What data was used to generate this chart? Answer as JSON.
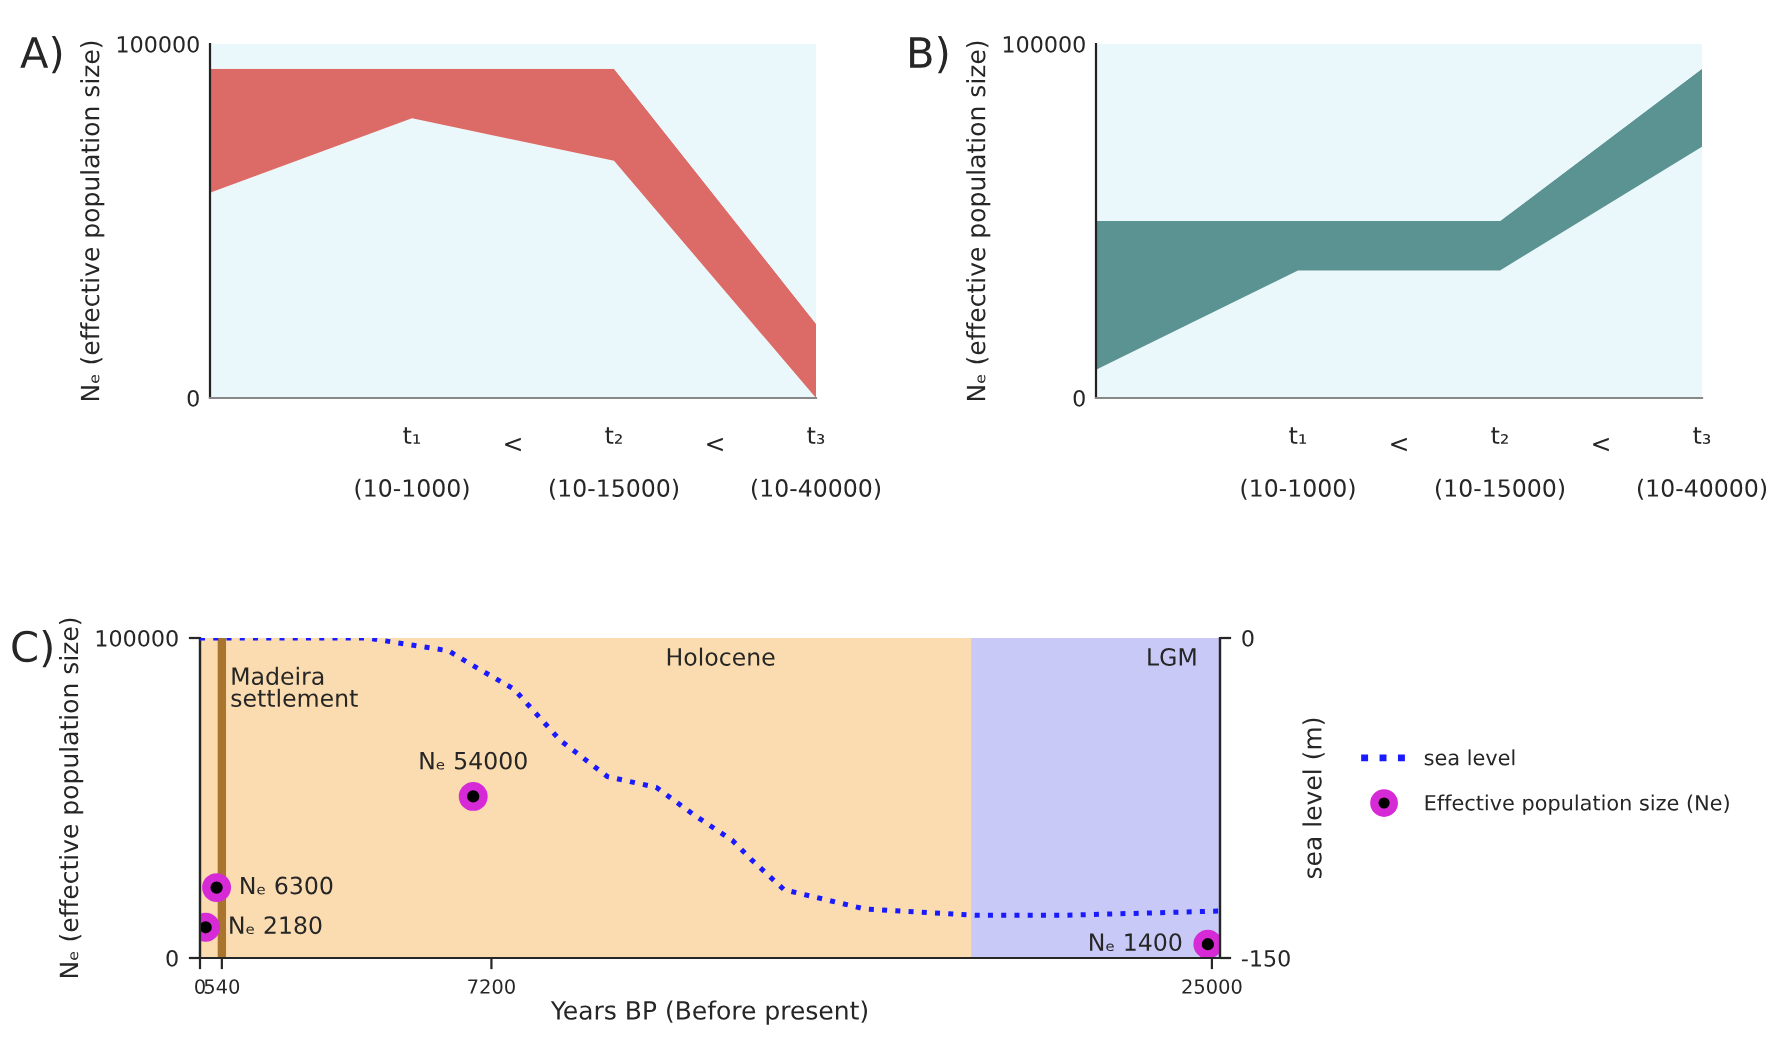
{
  "chart_data": [
    {
      "type": "area",
      "title": "A)",
      "ylabel": "Nₑ (effective population size)",
      "categories": [
        null,
        "t₁\n\n(10-1000)",
        "t₂\n\n(10-15000)",
        "t₃\n\n(10-40000)"
      ],
      "stacked": true,
      "series": [
        {
          "color": "#eaf8fc",
          "values": [
            58000,
            79000,
            67000,
            0
          ]
        },
        {
          "color": "#dc6b67",
          "values": [
            35000,
            14000,
            26000,
            21000
          ]
        },
        {
          "color": "#eaf8fc",
          "values": [
            7000,
            7000,
            7000,
            79000
          ]
        }
      ],
      "annotations": [
        "<",
        "<"
      ],
      "ylim": [
        0,
        100000
      ],
      "yticks": [
        0,
        100000
      ],
      "grid": false
    },
    {
      "type": "area",
      "title": "B)",
      "ylabel": "Nₑ (effective population size)",
      "categories": [
        null,
        "t₁\n\n(10-1000)",
        "t₂\n\n(10-15000)",
        "t₃\n\n(10-40000)"
      ],
      "stacked": true,
      "series": [
        {
          "color": "#eaf8fc",
          "values": [
            8000,
            36000,
            36000,
            71000
          ]
        },
        {
          "color": "#5a9391",
          "values": [
            42000,
            14000,
            14000,
            22000
          ]
        },
        {
          "color": "#eaf8fc",
          "values": [
            50000,
            50000,
            50000,
            7000
          ]
        }
      ],
      "annotations": [
        "<",
        "<"
      ],
      "ylim": [
        0,
        100000
      ],
      "yticks": [
        0,
        100000
      ],
      "grid": false
    },
    {
      "type": "scatter",
      "title": "C)",
      "xlabel": "Years BP (Before present)",
      "ylabel": "Nₑ (effective population size)",
      "y2label": "sea level (m)",
      "series": [
        {
          "type": "line",
          "name": "sea level",
          "color": "#1a1aff",
          "axis": "y2",
          "line_style": "dotted",
          "marker": "none",
          "x": [
            0,
            4130,
            6140,
            6660,
            7760,
            8900,
            10070,
            11270,
            12210,
            13160,
            13630,
            14430,
            16420,
            19180,
            21280,
            25200
          ],
          "values": [
            0,
            0,
            -6,
            -12,
            -24,
            -48,
            -65,
            -70,
            -83,
            -95,
            -104,
            -118,
            -127,
            -130,
            -130,
            -128
          ]
        },
        {
          "type": "scatter",
          "name": "Effective population size (Ne)",
          "color": "#d62ad6",
          "marker": "circle",
          "x": [
            140,
            410,
            6750,
            24900
          ],
          "values": [
            9600,
            22000,
            50500,
            4300
          ]
        }
      ],
      "annotations": [
        {
          "text": "Nₑ 2180",
          "x": 140,
          "y": 9600
        },
        {
          "text": "Nₑ 6300",
          "x": 410,
          "y": 22000
        },
        {
          "text": "Nₑ 54000",
          "x": 6750,
          "y": 50500
        },
        {
          "text": "Nₑ 1400",
          "x": 24900,
          "y": 4300
        }
      ],
      "bands": [
        {
          "axis": "x",
          "from": 0,
          "to": 19050,
          "label": "Holocene",
          "color": "#fbdcb0"
        },
        {
          "axis": "x",
          "from": 19050,
          "to": 25200,
          "label": "LGM",
          "color": "#c9c9f7"
        }
      ],
      "ref_lines": [
        {
          "axis": "x",
          "value": 540,
          "label": "Madeira\nsettlement",
          "color": "#a8742e"
        }
      ],
      "xlim": [
        0,
        25200
      ],
      "xticks": [
        0,
        540,
        7200,
        25000
      ],
      "ylim": [
        0,
        100000
      ],
      "yticks": [
        0,
        100000
      ],
      "y2lim": [
        -150,
        0
      ],
      "y2ticks": [
        0,
        -150
      ],
      "grid": false,
      "legend": "right"
    }
  ]
}
